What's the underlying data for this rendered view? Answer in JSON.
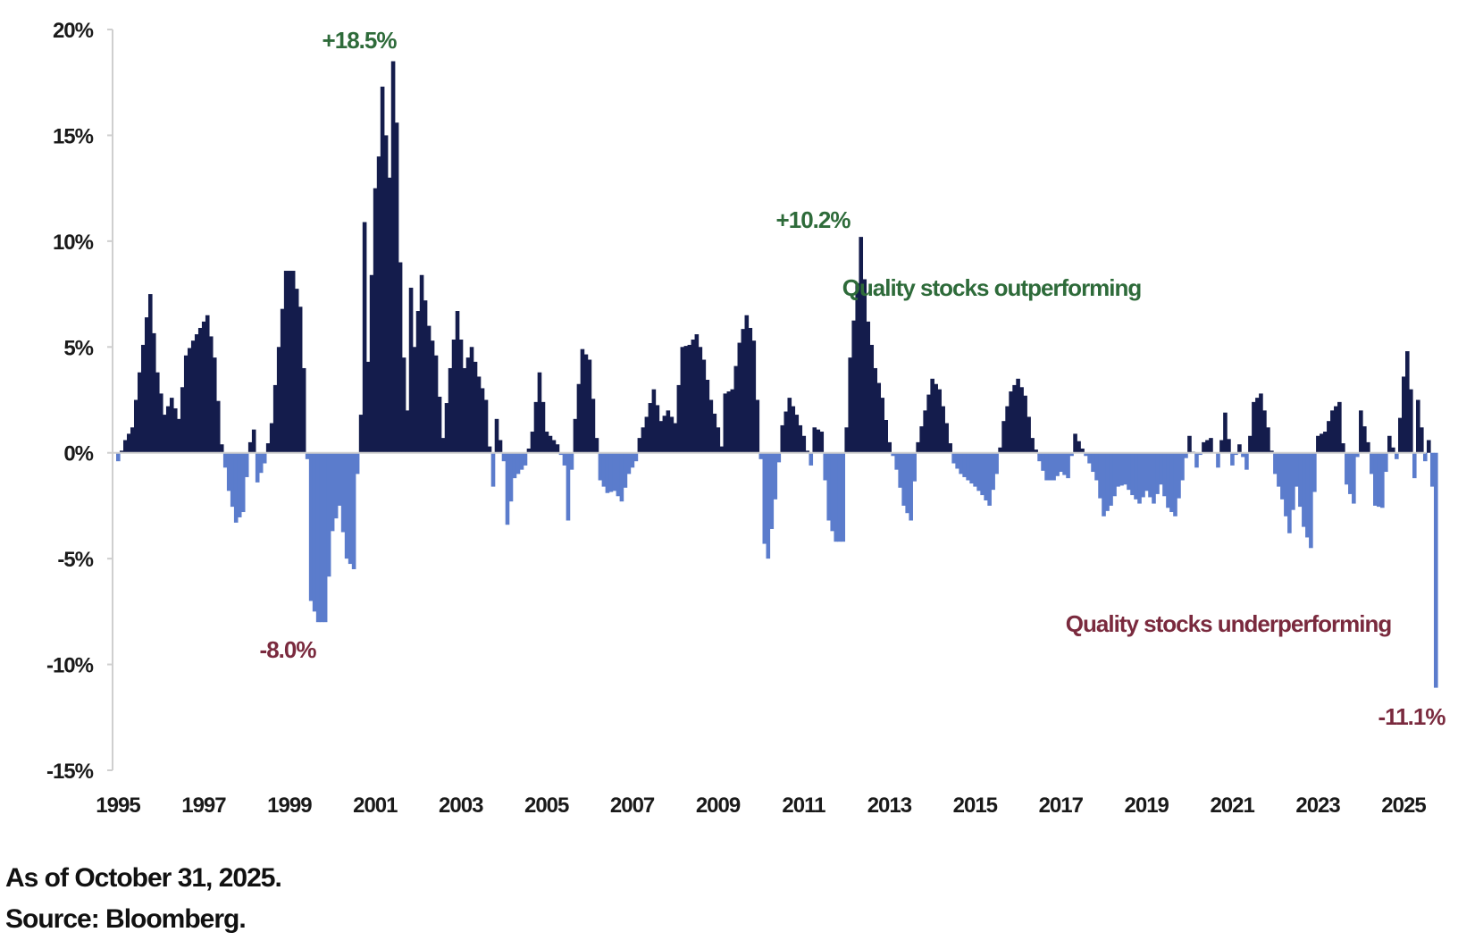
{
  "chart_data": {
    "type": "bar",
    "ylim": [
      -15,
      20
    ],
    "yticks": [
      "20%",
      "15%",
      "10%",
      "5%",
      "0%",
      "-5%",
      "-10%",
      "-15%"
    ],
    "xticks": [
      "1995",
      "1997",
      "1999",
      "2001",
      "2003",
      "2005",
      "2007",
      "2009",
      "2011",
      "2013",
      "2015",
      "2017",
      "2019",
      "2021",
      "2023",
      "2025"
    ],
    "x_start": "1995-01",
    "x_end": "2025-10",
    "colors": {
      "positive": "#141c4c",
      "negative": "#5b7ccc"
    },
    "anchors": [
      [
        "1995-01",
        -0.4
      ],
      [
        "1995-03",
        0.6
      ],
      [
        "1995-05",
        1.2
      ],
      [
        "1995-07",
        3.8
      ],
      [
        "1995-09",
        6.4
      ],
      [
        "1995-10",
        7.5
      ],
      [
        "1995-12",
        3.8
      ],
      [
        "1996-02",
        1.8
      ],
      [
        "1996-04",
        2.6
      ],
      [
        "1996-06",
        1.6
      ],
      [
        "1996-08",
        4.6
      ],
      [
        "1996-10",
        5.3
      ],
      [
        "1996-12",
        5.9
      ],
      [
        "1997-02",
        6.5
      ],
      [
        "1997-04",
        4.5
      ],
      [
        "1997-06",
        0.4
      ],
      [
        "1997-08",
        -1.8
      ],
      [
        "1997-10",
        -3.3
      ],
      [
        "1997-12",
        -2.8
      ],
      [
        "1998-02",
        0.5
      ],
      [
        "1998-03",
        1.1
      ],
      [
        "1998-04",
        -1.4
      ],
      [
        "1998-06",
        -0.5
      ],
      [
        "1998-08",
        1.4
      ],
      [
        "1998-10",
        5.0
      ],
      [
        "1998-12",
        8.6
      ],
      [
        "1999-02",
        8.6
      ],
      [
        "1999-04",
        6.9
      ],
      [
        "1999-05",
        4.0
      ],
      [
        "1999-06",
        -0.3
      ],
      [
        "1999-07",
        -7.0
      ],
      [
        "1999-09",
        -8.0
      ],
      [
        "1999-11",
        -8.0
      ],
      [
        "2000-01",
        -3.7
      ],
      [
        "2000-03",
        -2.5
      ],
      [
        "2000-05",
        -5.0
      ],
      [
        "2000-07",
        -5.5
      ],
      [
        "2000-08",
        -1.0
      ],
      [
        "2000-09",
        1.8
      ],
      [
        "2000-10",
        10.9
      ],
      [
        "2000-11",
        4.3
      ],
      [
        "2001-01",
        12.5
      ],
      [
        "2001-02",
        14.0
      ],
      [
        "2001-03",
        17.3
      ],
      [
        "2001-04",
        15.0
      ],
      [
        "2001-05",
        13.0
      ],
      [
        "2001-06",
        18.5
      ],
      [
        "2001-07",
        15.6
      ],
      [
        "2001-08",
        9.0
      ],
      [
        "2001-09",
        4.5
      ],
      [
        "2001-10",
        2.0
      ],
      [
        "2001-11",
        7.8
      ],
      [
        "2001-12",
        5.0
      ],
      [
        "2002-02",
        8.4
      ],
      [
        "2002-04",
        6.0
      ],
      [
        "2002-06",
        4.6
      ],
      [
        "2002-08",
        0.7
      ],
      [
        "2002-10",
        4.0
      ],
      [
        "2002-12",
        6.7
      ],
      [
        "2003-02",
        4.0
      ],
      [
        "2003-04",
        5.0
      ],
      [
        "2003-06",
        3.6
      ],
      [
        "2003-08",
        2.5
      ],
      [
        "2003-09",
        0.3
      ],
      [
        "2003-10",
        -1.6
      ],
      [
        "2003-11",
        1.6
      ],
      [
        "2004-01",
        -0.4
      ],
      [
        "2004-02",
        -3.4
      ],
      [
        "2004-04",
        -1.2
      ],
      [
        "2004-07",
        -0.6
      ],
      [
        "2004-09",
        1.0
      ],
      [
        "2004-11",
        3.8
      ],
      [
        "2005-01",
        1.0
      ],
      [
        "2005-04",
        0.4
      ],
      [
        "2005-06",
        -0.6
      ],
      [
        "2005-07",
        -3.2
      ],
      [
        "2005-09",
        1.6
      ],
      [
        "2005-11",
        4.9
      ],
      [
        "2006-01",
        4.4
      ],
      [
        "2006-03",
        0.7
      ],
      [
        "2006-04",
        -1.3
      ],
      [
        "2006-06",
        -1.9
      ],
      [
        "2006-08",
        -1.8
      ],
      [
        "2006-10",
        -2.3
      ],
      [
        "2006-12",
        -1.0
      ],
      [
        "2007-02",
        -0.4
      ],
      [
        "2007-03",
        0.7
      ],
      [
        "2007-05",
        1.7
      ],
      [
        "2007-07",
        3.0
      ],
      [
        "2007-09",
        1.5
      ],
      [
        "2007-11",
        2.0
      ],
      [
        "2008-01",
        1.4
      ],
      [
        "2008-03",
        5.0
      ],
      [
        "2008-05",
        5.1
      ],
      [
        "2008-07",
        5.6
      ],
      [
        "2008-09",
        4.4
      ],
      [
        "2008-11",
        2.5
      ],
      [
        "2009-01",
        1.2
      ],
      [
        "2009-02",
        0.3
      ],
      [
        "2009-03",
        2.8
      ],
      [
        "2009-05",
        3.0
      ],
      [
        "2009-07",
        5.2
      ],
      [
        "2009-09",
        6.5
      ],
      [
        "2009-11",
        5.3
      ],
      [
        "2010-01",
        -0.3
      ],
      [
        "2010-02",
        -4.3
      ],
      [
        "2010-03",
        -5.0
      ],
      [
        "2010-05",
        -2.2
      ],
      [
        "2010-07",
        1.3
      ],
      [
        "2010-09",
        2.6
      ],
      [
        "2010-11",
        1.8
      ],
      [
        "2011-01",
        0.8
      ],
      [
        "2011-03",
        -0.6
      ],
      [
        "2011-04",
        1.2
      ],
      [
        "2011-06",
        1.0
      ],
      [
        "2011-07",
        -1.3
      ],
      [
        "2011-08",
        -3.2
      ],
      [
        "2011-10",
        -4.2
      ],
      [
        "2011-12",
        -4.2
      ],
      [
        "2012-01",
        1.2
      ],
      [
        "2012-02",
        4.5
      ],
      [
        "2012-04",
        8.0
      ],
      [
        "2012-05",
        10.2
      ],
      [
        "2012-07",
        6.2
      ],
      [
        "2012-09",
        4.0
      ],
      [
        "2012-11",
        2.6
      ],
      [
        "2013-01",
        0.5
      ],
      [
        "2013-03",
        -0.8
      ],
      [
        "2013-05",
        -2.5
      ],
      [
        "2013-07",
        -3.2
      ],
      [
        "2013-09",
        0.5
      ],
      [
        "2013-11",
        2.0
      ],
      [
        "2014-01",
        3.5
      ],
      [
        "2014-03",
        3.0
      ],
      [
        "2014-05",
        1.4
      ],
      [
        "2014-07",
        -0.5
      ],
      [
        "2014-09",
        -1.0
      ],
      [
        "2014-11",
        -1.3
      ],
      [
        "2015-01",
        -1.6
      ],
      [
        "2015-03",
        -2.0
      ],
      [
        "2015-05",
        -2.5
      ],
      [
        "2015-07",
        -1.0
      ],
      [
        "2015-09",
        1.5
      ],
      [
        "2015-11",
        2.9
      ],
      [
        "2016-01",
        3.5
      ],
      [
        "2016-03",
        2.7
      ],
      [
        "2016-05",
        0.7
      ],
      [
        "2016-07",
        -0.4
      ],
      [
        "2016-09",
        -1.3
      ],
      [
        "2016-11",
        -1.3
      ],
      [
        "2017-01",
        -0.9
      ],
      [
        "2017-03",
        -1.2
      ],
      [
        "2017-05",
        0.9
      ],
      [
        "2017-07",
        0.2
      ],
      [
        "2017-09",
        -0.5
      ],
      [
        "2017-11",
        -1.3
      ],
      [
        "2018-01",
        -3.0
      ],
      [
        "2018-03",
        -2.5
      ],
      [
        "2018-05",
        -1.6
      ],
      [
        "2018-07",
        -1.5
      ],
      [
        "2018-09",
        -2.0
      ],
      [
        "2018-11",
        -2.4
      ],
      [
        "2019-01",
        -1.8
      ],
      [
        "2019-03",
        -2.4
      ],
      [
        "2019-05",
        -1.5
      ],
      [
        "2019-07",
        -2.6
      ],
      [
        "2019-09",
        -3.0
      ],
      [
        "2019-11",
        -1.3
      ],
      [
        "2020-01",
        0.8
      ],
      [
        "2020-03",
        -0.7
      ],
      [
        "2020-05",
        0.5
      ],
      [
        "2020-07",
        0.7
      ],
      [
        "2020-09",
        -0.7
      ],
      [
        "2020-11",
        1.9
      ],
      [
        "2021-01",
        -0.6
      ],
      [
        "2021-03",
        0.4
      ],
      [
        "2021-05",
        -0.8
      ],
      [
        "2021-07",
        2.4
      ],
      [
        "2021-09",
        2.8
      ],
      [
        "2021-11",
        1.2
      ],
      [
        "2022-01",
        -1.0
      ],
      [
        "2022-03",
        -2.2
      ],
      [
        "2022-05",
        -3.8
      ],
      [
        "2022-07",
        -1.6
      ],
      [
        "2022-09",
        -3.5
      ],
      [
        "2022-11",
        -4.5
      ],
      [
        "2023-01",
        0.8
      ],
      [
        "2023-03",
        1.0
      ],
      [
        "2023-05",
        2.0
      ],
      [
        "2023-07",
        2.4
      ],
      [
        "2023-09",
        -1.5
      ],
      [
        "2023-11",
        -2.4
      ],
      [
        "2024-01",
        2.0
      ],
      [
        "2024-03",
        0.5
      ],
      [
        "2024-05",
        -2.5
      ],
      [
        "2024-07",
        -2.6
      ],
      [
        "2024-09",
        0.8
      ],
      [
        "2024-11",
        -0.3
      ],
      [
        "2025-01",
        3.6
      ],
      [
        "2025-02",
        4.8
      ],
      [
        "2025-03",
        3.0
      ],
      [
        "2025-04",
        -1.2
      ],
      [
        "2025-05",
        2.5
      ],
      [
        "2025-06",
        1.2
      ],
      [
        "2025-07",
        -0.4
      ],
      [
        "2025-08",
        0.6
      ],
      [
        "2025-09",
        -1.6
      ],
      [
        "2025-10",
        -11.1
      ]
    ],
    "annotations": [
      {
        "text": "+18.5%",
        "color": "#2e6b3a"
      },
      {
        "text": "+10.2%",
        "color": "#2e6b3a"
      },
      {
        "text": "-8.0%",
        "color": "#7a2a3e"
      },
      {
        "text": "-11.1%",
        "color": "#7a2a3e"
      },
      {
        "text": "Quality stocks outperforming",
        "color": "#2e6b3a"
      },
      {
        "text": "Quality stocks underperforming",
        "color": "#7a2a3e"
      }
    ]
  },
  "footnote": {
    "line1": "As of October 31, 2025.",
    "line2": "Source: Bloomberg."
  }
}
